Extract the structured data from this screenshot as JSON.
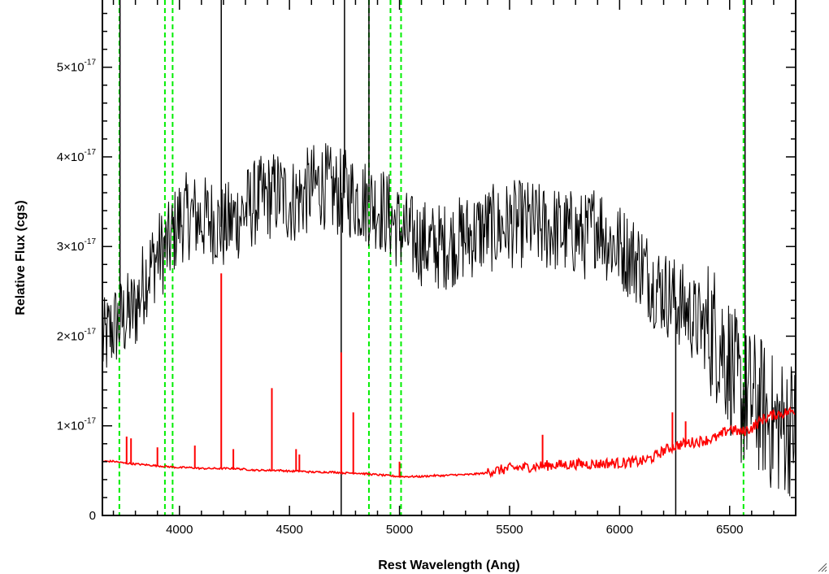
{
  "chart_data": {
    "type": "line",
    "title": "",
    "xlabel": "Rest Wavelength (Ang)",
    "ylabel": "Relative Flux (cgs)",
    "xlim": [
      3650,
      6800
    ],
    "ylim_display": [
      0,
      5.75
    ],
    "y_exponent_label": "-17",
    "x_ticks": [
      4000,
      4500,
      5000,
      5500,
      6000,
      6500
    ],
    "x_tick_labels": [
      "4000",
      "4500",
      "5000",
      "5500",
      "6000",
      "6500"
    ],
    "y_ticks": [
      0,
      1,
      2,
      3,
      4,
      5
    ],
    "y_tick_mantissa": [
      "0",
      "1",
      "2",
      "3",
      "4",
      "5"
    ],
    "y_tick_times": "×10",
    "series": [
      {
        "color": "#000000",
        "style": "noisy-spectrum",
        "x": [
          3650,
          3700,
          3750,
          3800,
          3850,
          3900,
          3950,
          4000,
          4050,
          4100,
          4150,
          4200,
          4250,
          4300,
          4350,
          4400,
          4450,
          4500,
          4550,
          4600,
          4650,
          4700,
          4750,
          4800,
          4850,
          4900,
          4950,
          5000,
          5050,
          5100,
          5150,
          5200,
          5250,
          5300,
          5350,
          5400,
          5450,
          5500,
          5550,
          5600,
          5650,
          5700,
          5750,
          5800,
          5850,
          5900,
          5950,
          6000,
          6050,
          6100,
          6150,
          6200,
          6250,
          6300,
          6350,
          6400,
          6450,
          6500,
          6550,
          6600,
          6650,
          6700,
          6750,
          6800
        ],
        "y": [
          1.9,
          2.1,
          2.2,
          2.3,
          2.7,
          2.9,
          3.0,
          3.3,
          3.35,
          3.3,
          3.3,
          3.2,
          3.3,
          3.4,
          3.5,
          3.55,
          3.6,
          3.5,
          3.55,
          3.65,
          3.7,
          3.6,
          3.6,
          3.55,
          3.5,
          3.45,
          3.35,
          3.2,
          3.1,
          3.05,
          3.0,
          3.0,
          3.05,
          3.1,
          3.15,
          3.2,
          3.2,
          3.25,
          3.25,
          3.25,
          3.2,
          3.2,
          3.15,
          3.15,
          3.1,
          3.3,
          3.05,
          3.0,
          2.9,
          2.8,
          2.6,
          2.5,
          2.4,
          2.3,
          2.15,
          2.1,
          2.0,
          1.7,
          1.3,
          1.3,
          1.2,
          1.0,
          1.0,
          1.0
        ],
        "noise_amplitude": 0.5
      },
      {
        "color": "#ff0000",
        "style": "model-spectrum",
        "x": [
          3650,
          3700,
          3750,
          3800,
          3850,
          3900,
          3950,
          4000,
          4050,
          4100,
          4150,
          4200,
          4250,
          4300,
          4350,
          4400,
          4450,
          4500,
          4550,
          4600,
          4650,
          4700,
          4750,
          4800,
          4850,
          4900,
          4950,
          5000,
          5050,
          5100,
          5150,
          5200,
          5250,
          5300,
          5350,
          5400,
          5450,
          5500,
          5550,
          5600,
          5650,
          5700,
          5750,
          5800,
          5850,
          5900,
          5950,
          6000,
          6050,
          6100,
          6150,
          6200,
          6250,
          6300,
          6350,
          6400,
          6450,
          6500,
          6550,
          6600,
          6650,
          6700,
          6750,
          6800
        ],
        "y": [
          0.6,
          0.6,
          0.58,
          0.57,
          0.56,
          0.55,
          0.54,
          0.53,
          0.53,
          0.52,
          0.52,
          0.52,
          0.52,
          0.51,
          0.5,
          0.5,
          0.5,
          0.49,
          0.49,
          0.48,
          0.48,
          0.48,
          0.47,
          0.47,
          0.46,
          0.45,
          0.44,
          0.43,
          0.43,
          0.43,
          0.44,
          0.44,
          0.45,
          0.45,
          0.46,
          0.47,
          0.48,
          0.5,
          0.51,
          0.52,
          0.53,
          0.54,
          0.54,
          0.55,
          0.55,
          0.55,
          0.56,
          0.56,
          0.57,
          0.58,
          0.62,
          0.7,
          0.75,
          0.78,
          0.8,
          0.82,
          0.85,
          0.95,
          0.9,
          0.95,
          1.05,
          1.1,
          1.12,
          1.15
        ],
        "spikes": [
          [
            3760,
            0.88
          ],
          [
            3780,
            0.86
          ],
          [
            3900,
            0.76
          ],
          [
            4070,
            0.78
          ],
          [
            4190,
            2.7
          ],
          [
            4245,
            0.74
          ],
          [
            4420,
            1.42
          ],
          [
            4530,
            0.74
          ],
          [
            4545,
            0.68
          ],
          [
            4735,
            1.82
          ],
          [
            4790,
            1.15
          ],
          [
            5000,
            0.6
          ],
          [
            5650,
            0.9
          ],
          [
            6240,
            1.15
          ],
          [
            6300,
            1.05
          ]
        ],
        "noisy_band": [
          5400,
          6800
        ]
      }
    ],
    "vertical_lines": {
      "color": "#00ee00",
      "style": "dashed",
      "x": [
        3727,
        3934,
        3969,
        4861,
        4959,
        5007,
        6563
      ]
    },
    "grid": false,
    "legend": "none"
  },
  "window": {
    "resize_grip_icon": "resize-grip-icon"
  }
}
